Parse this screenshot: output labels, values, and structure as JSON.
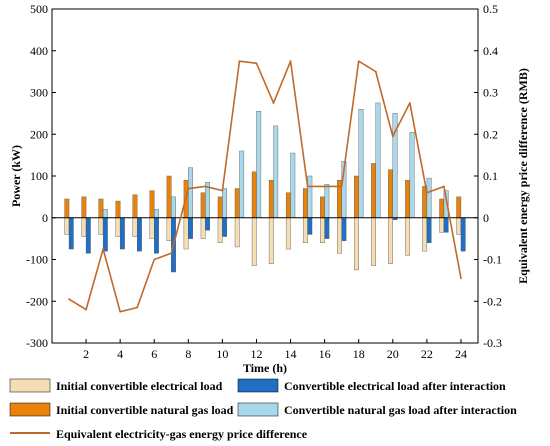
{
  "chart_data": {
    "type": "bar",
    "title": "",
    "xlabel": "Time (h)",
    "ylabel": "Power (kW)",
    "y2label": "Equivalent energy price difference (RMB)",
    "xlim": [
      0,
      25
    ],
    "xticks": [
      2,
      4,
      6,
      8,
      10,
      12,
      14,
      16,
      18,
      20,
      22,
      24
    ],
    "ylim": [
      -300,
      500
    ],
    "yticks": [
      -300,
      -200,
      -100,
      0,
      100,
      200,
      300,
      400,
      500
    ],
    "y2lim": [
      -0.3,
      0.5
    ],
    "y2ticks": [
      -0.3,
      -0.2,
      -0.1,
      0,
      0.1,
      0.2,
      0.3,
      0.4,
      0.5
    ],
    "y2tick_labels": [
      "-0.3",
      "-0.2",
      "-0.1",
      "0",
      "0.1",
      "0.2",
      "0.3",
      "0.4",
      "0.5"
    ],
    "grid": false,
    "legend": "bottom",
    "x": [
      1,
      2,
      3,
      4,
      5,
      6,
      7,
      8,
      9,
      10,
      11,
      12,
      13,
      14,
      15,
      16,
      17,
      18,
      19,
      20,
      21,
      22,
      23,
      24
    ],
    "series": [
      {
        "name": "Initial convertible electrical load",
        "color": "#f5deb3",
        "axis": "left",
        "values": [
          -40,
          -45,
          -40,
          -45,
          -45,
          -50,
          -55,
          -75,
          -50,
          -60,
          -70,
          -115,
          -110,
          -75,
          -60,
          -60,
          -85,
          -125,
          -115,
          -110,
          -90,
          -80,
          -35,
          -40
        ]
      },
      {
        "name": "Convertible electrical load after interaction",
        "color": "#1f6fc5",
        "axis": "left",
        "values": [
          -75,
          -85,
          -80,
          -75,
          -80,
          -85,
          -130,
          -50,
          -30,
          -45,
          0,
          0,
          0,
          0,
          -40,
          -50,
          -55,
          0,
          0,
          -5,
          0,
          -60,
          -35,
          -80
        ]
      },
      {
        "name": "Initial convertible natural gas load",
        "color": "#e8820c",
        "axis": "left",
        "values": [
          45,
          50,
          45,
          40,
          55,
          65,
          100,
          90,
          60,
          50,
          70,
          110,
          90,
          60,
          70,
          50,
          90,
          100,
          130,
          115,
          90,
          75,
          45,
          50
        ]
      },
      {
        "name": "Convertible natural gas load after interaction",
        "color": "#a8d8ea",
        "axis": "left",
        "values": [
          0,
          0,
          20,
          0,
          0,
          20,
          50,
          120,
          85,
          70,
          160,
          255,
          220,
          155,
          100,
          80,
          135,
          260,
          275,
          250,
          205,
          95,
          65,
          0
        ]
      },
      {
        "name": "Equivalent electricity-gas energy price difference",
        "color": "#c0692a",
        "type": "line",
        "axis": "right",
        "values": [
          -0.195,
          -0.22,
          -0.075,
          -0.225,
          -0.215,
          -0.1,
          -0.085,
          0.07,
          0.075,
          0.065,
          0.375,
          0.37,
          0.275,
          0.375,
          0.075,
          0.075,
          0.075,
          0.375,
          0.35,
          0.195,
          0.275,
          0.06,
          0.075,
          -0.145
        ]
      }
    ]
  }
}
